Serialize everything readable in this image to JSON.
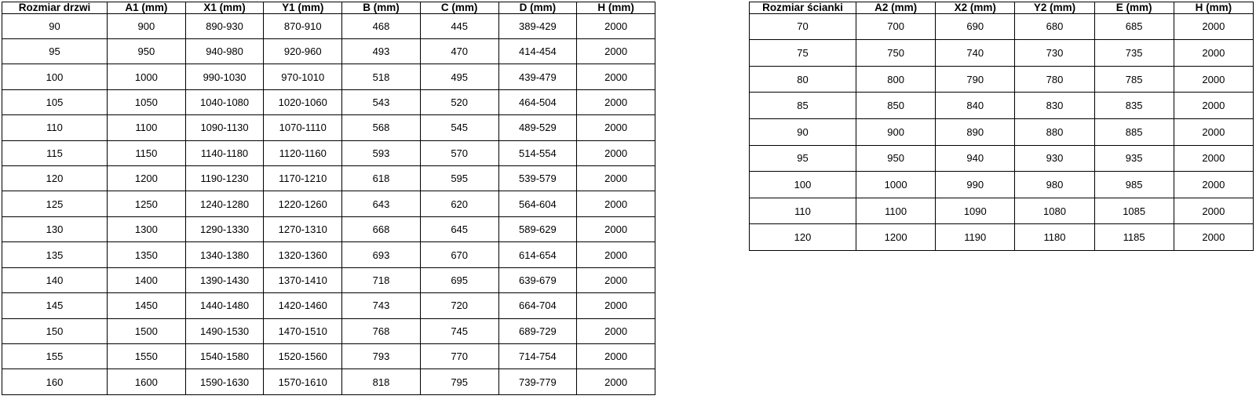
{
  "doors_table": {
    "headers": [
      "Rozmiar drzwi",
      "A1 (mm)",
      "X1 (mm)",
      "Y1 (mm)",
      "B (mm)",
      "C (mm)",
      "D (mm)",
      "H (mm)"
    ],
    "rows": [
      [
        "90",
        "900",
        "890-930",
        "870-910",
        "468",
        "445",
        "389-429",
        "2000"
      ],
      [
        "95",
        "950",
        "940-980",
        "920-960",
        "493",
        "470",
        "414-454",
        "2000"
      ],
      [
        "100",
        "1000",
        "990-1030",
        "970-1010",
        "518",
        "495",
        "439-479",
        "2000"
      ],
      [
        "105",
        "1050",
        "1040-1080",
        "1020-1060",
        "543",
        "520",
        "464-504",
        "2000"
      ],
      [
        "110",
        "1100",
        "1090-1130",
        "1070-1110",
        "568",
        "545",
        "489-529",
        "2000"
      ],
      [
        "115",
        "1150",
        "1140-1180",
        "1120-1160",
        "593",
        "570",
        "514-554",
        "2000"
      ],
      [
        "120",
        "1200",
        "1190-1230",
        "1170-1210",
        "618",
        "595",
        "539-579",
        "2000"
      ],
      [
        "125",
        "1250",
        "1240-1280",
        "1220-1260",
        "643",
        "620",
        "564-604",
        "2000"
      ],
      [
        "130",
        "1300",
        "1290-1330",
        "1270-1310",
        "668",
        "645",
        "589-629",
        "2000"
      ],
      [
        "135",
        "1350",
        "1340-1380",
        "1320-1360",
        "693",
        "670",
        "614-654",
        "2000"
      ],
      [
        "140",
        "1400",
        "1390-1430",
        "1370-1410",
        "718",
        "695",
        "639-679",
        "2000"
      ],
      [
        "145",
        "1450",
        "1440-1480",
        "1420-1460",
        "743",
        "720",
        "664-704",
        "2000"
      ],
      [
        "150",
        "1500",
        "1490-1530",
        "1470-1510",
        "768",
        "745",
        "689-729",
        "2000"
      ],
      [
        "155",
        "1550",
        "1540-1580",
        "1520-1560",
        "793",
        "770",
        "714-754",
        "2000"
      ],
      [
        "160",
        "1600",
        "1590-1630",
        "1570-1610",
        "818",
        "795",
        "739-779",
        "2000"
      ]
    ]
  },
  "walls_table": {
    "headers": [
      "Rozmiar ścianki",
      "A2 (mm)",
      "X2 (mm)",
      "Y2 (mm)",
      "E (mm)",
      "H (mm)"
    ],
    "rows": [
      [
        "70",
        "700",
        "690",
        "680",
        "685",
        "2000"
      ],
      [
        "75",
        "750",
        "740",
        "730",
        "735",
        "2000"
      ],
      [
        "80",
        "800",
        "790",
        "780",
        "785",
        "2000"
      ],
      [
        "85",
        "850",
        "840",
        "830",
        "835",
        "2000"
      ],
      [
        "90",
        "900",
        "890",
        "880",
        "885",
        "2000"
      ],
      [
        "95",
        "950",
        "940",
        "930",
        "935",
        "2000"
      ],
      [
        "100",
        "1000",
        "990",
        "980",
        "985",
        "2000"
      ],
      [
        "110",
        "1100",
        "1090",
        "1080",
        "1085",
        "2000"
      ],
      [
        "120",
        "1200",
        "1190",
        "1180",
        "1185",
        "2000"
      ]
    ]
  },
  "colors": {
    "border": "#000000",
    "text": "#000000",
    "background": "#ffffff"
  }
}
